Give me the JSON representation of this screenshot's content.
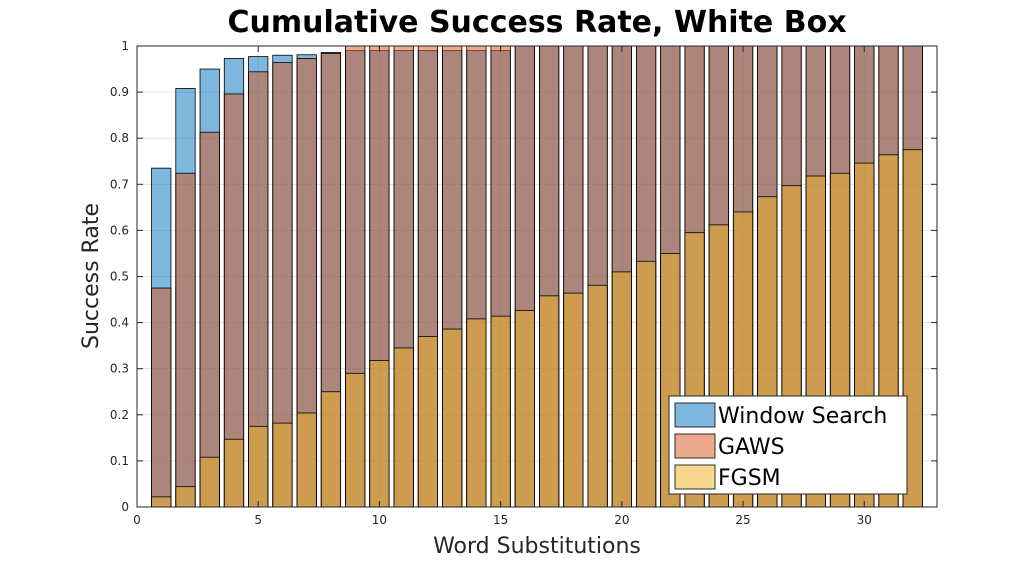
{
  "chart_data": {
    "type": "bar",
    "title": "Cumulative Success Rate, White Box",
    "xlabel": "Word Substitutions",
    "ylabel": "Success Rate",
    "xlim": [
      0,
      33
    ],
    "ylim": [
      0,
      1
    ],
    "xticks": [
      0,
      5,
      10,
      15,
      20,
      25,
      30
    ],
    "xtick_labels": [
      "0",
      "5",
      "10",
      "15",
      "20",
      "25",
      "30"
    ],
    "yticks": [
      0,
      0.1,
      0.2,
      0.3,
      0.4,
      0.5,
      0.6,
      0.7,
      0.8,
      0.9,
      1
    ],
    "ytick_labels": [
      "0",
      "0.1",
      "0.2",
      "0.3",
      "0.4",
      "0.5",
      "0.6",
      "0.7",
      "0.8",
      "0.9",
      "1"
    ],
    "grid": true,
    "legend_position": "bottom-right",
    "overlaid": true,
    "x": [
      1,
      2,
      3,
      4,
      5,
      6,
      7,
      8,
      9,
      10,
      11,
      12,
      13,
      14,
      15,
      16,
      17,
      18,
      19,
      20,
      21,
      22,
      23,
      24,
      25,
      26,
      27,
      28,
      29,
      30,
      31,
      32
    ],
    "series": [
      {
        "name": "Window Search",
        "color": "#0072BD",
        "values": [
          0.735,
          0.908,
          0.95,
          0.973,
          0.977,
          0.98,
          0.981,
          0.986,
          0.99,
          0.99,
          0.99,
          0.99,
          0.99,
          0.99,
          0.99,
          1.0,
          1.0,
          1.0,
          1.0,
          1.0,
          1.0,
          1.0,
          1.0,
          1.0,
          1.0,
          1.0,
          1.0,
          1.0,
          1.0,
          1.0,
          1.0,
          1.0
        ]
      },
      {
        "name": "GAWS",
        "color": "#D95319",
        "values": [
          0.475,
          0.724,
          0.813,
          0.896,
          0.944,
          0.964,
          0.973,
          0.984,
          1.0,
          1.0,
          1.0,
          1.0,
          1.0,
          1.0,
          1.0,
          1.0,
          1.0,
          1.0,
          1.0,
          1.0,
          1.0,
          1.0,
          1.0,
          1.0,
          1.0,
          1.0,
          1.0,
          1.0,
          1.0,
          1.0,
          1.0,
          1.0
        ]
      },
      {
        "name": "FGSM",
        "color": "#EDB120",
        "values": [
          0.022,
          0.044,
          0.108,
          0.147,
          0.175,
          0.182,
          0.204,
          0.25,
          0.29,
          0.318,
          0.345,
          0.37,
          0.386,
          0.408,
          0.414,
          0.426,
          0.458,
          0.464,
          0.481,
          0.51,
          0.533,
          0.55,
          0.595,
          0.612,
          0.64,
          0.673,
          0.697,
          0.718,
          0.724,
          0.746,
          0.764,
          0.775
        ]
      }
    ]
  }
}
